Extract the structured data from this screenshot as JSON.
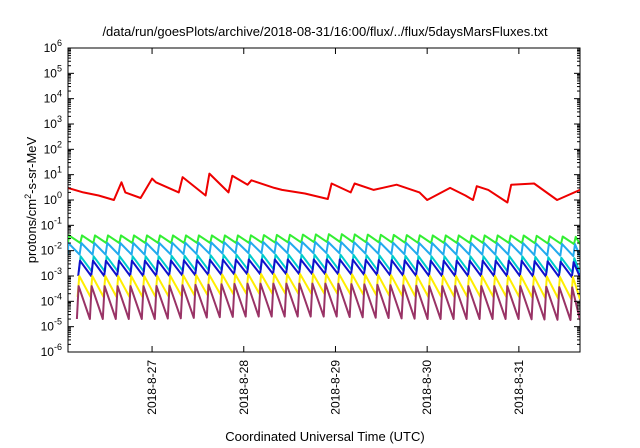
{
  "chart_data": {
    "type": "line",
    "title": "/data/run/goesPlots/archive/2018-08-31/16:00/flux/../flux/5daysMarsFluxes.txt",
    "xlabel": "Coordinated Universal Time (UTC)",
    "ylabel": {
      "pre": "protons/cm",
      "sup": "2",
      "post": "-s-sr-MeV"
    },
    "y_scale": "log",
    "ylim": [
      1e-06,
      1000000.0
    ],
    "xlim": [
      "2018-08-26 02:00",
      "2018-08-31 16:00"
    ],
    "x_ticks": [
      "2018-8-27",
      "2018-8-28",
      "2018-8-29",
      "2018-8-30",
      "2018-8-31"
    ],
    "y_ticks": [
      {
        "base": "10",
        "exp": "-6"
      },
      {
        "base": "10",
        "exp": "-5"
      },
      {
        "base": "10",
        "exp": "-4"
      },
      {
        "base": "10",
        "exp": "-3"
      },
      {
        "base": "10",
        "exp": "-2"
      },
      {
        "base": "10",
        "exp": "-1"
      },
      {
        "base": "10",
        "exp": "0"
      },
      {
        "base": "10",
        "exp": "1"
      },
      {
        "base": "10",
        "exp": "2"
      },
      {
        "base": "10",
        "exp": "3"
      },
      {
        "base": "10",
        "exp": "4"
      },
      {
        "base": "10",
        "exp": "5"
      },
      {
        "base": "10",
        "exp": "6"
      }
    ],
    "grid": false,
    "legend": "none",
    "series": [
      {
        "color": "#ee0000",
        "x": [
          "2018-08-26 02:00",
          "2018-08-26 06:00",
          "2018-08-26 10:00",
          "2018-08-26 14:00",
          "2018-08-26 16:00",
          "2018-08-26 17:00",
          "2018-08-26 21:00",
          "2018-08-27 00:00",
          "2018-08-27 01:00",
          "2018-08-27 07:00",
          "2018-08-27 08:00",
          "2018-08-27 14:00",
          "2018-08-27 15:00",
          "2018-08-27 20:00",
          "2018-08-27 21:00",
          "2018-08-28 01:00",
          "2018-08-28 02:00",
          "2018-08-28 08:00",
          "2018-08-28 10:00",
          "2018-08-28 16:00",
          "2018-08-28 22:00",
          "2018-08-28 23:00",
          "2018-08-29 04:00",
          "2018-08-29 05:00",
          "2018-08-29 10:00",
          "2018-08-29 16:00",
          "2018-08-29 22:00",
          "2018-08-30 00:00",
          "2018-08-30 06:00",
          "2018-08-30 10:00",
          "2018-08-30 12:00",
          "2018-08-30 13:00",
          "2018-08-30 16:00",
          "2018-08-30 21:00",
          "2018-08-30 22:00",
          "2018-08-31 04:00",
          "2018-08-31 10:00",
          "2018-08-31 16:00"
        ],
        "y": [
          3.0,
          2.0,
          1.5,
          1.0,
          5.0,
          2.0,
          1.2,
          7.0,
          5.0,
          2.0,
          8.0,
          1.5,
          11.0,
          2.0,
          9.0,
          4.0,
          6.0,
          3.0,
          2.5,
          1.8,
          1.1,
          4.5,
          2.0,
          4.5,
          2.5,
          4.0,
          2.0,
          1.0,
          3.0,
          1.5,
          1.0,
          3.5,
          2.5,
          0.8,
          4.0,
          4.5,
          1.0,
          2.5
        ]
      },
      {
        "color": "#33ee33",
        "x": [
          "2018-08-26 02:00",
          "2018-08-27 00:00",
          "2018-08-28 00:00",
          "2018-08-29 00:00",
          "2018-08-30 00:00",
          "2018-08-31 00:00",
          "2018-08-31 16:00"
        ],
        "y_peak": [
          0.04,
          0.04,
          0.04,
          0.045,
          0.04,
          0.04,
          0.035
        ],
        "y_trough": [
          0.02,
          0.02,
          0.02,
          0.022,
          0.02,
          0.02,
          0.018
        ]
      },
      {
        "color": "#22aaee",
        "x": [
          "2018-08-26 02:00",
          "2018-08-27 00:00",
          "2018-08-28 00:00",
          "2018-08-29 00:00",
          "2018-08-30 00:00",
          "2018-08-31 00:00",
          "2018-08-31 16:00"
        ],
        "y_peak": [
          0.02,
          0.02,
          0.022,
          0.022,
          0.02,
          0.02,
          0.018
        ],
        "y_trough": [
          0.007,
          0.007,
          0.008,
          0.008,
          0.007,
          0.007,
          0.006
        ]
      },
      {
        "color": "#00cccc",
        "x": [
          "2018-08-26 02:00",
          "2018-08-27 00:00",
          "2018-08-28 00:00",
          "2018-08-29 00:00",
          "2018-08-30 00:00",
          "2018-08-31 00:00",
          "2018-08-31 16:00"
        ],
        "y_peak": [
          0.006,
          0.006,
          0.007,
          0.007,
          0.006,
          0.006,
          0.005
        ],
        "y_trough": [
          0.0015,
          0.0015,
          0.0018,
          0.0018,
          0.0015,
          0.0015,
          0.0013
        ]
      },
      {
        "color": "#1111cc",
        "x": [
          "2018-08-26 02:00",
          "2018-08-27 00:00",
          "2018-08-28 00:00",
          "2018-08-29 00:00",
          "2018-08-30 00:00",
          "2018-08-31 00:00",
          "2018-08-31 16:00"
        ],
        "y_peak": [
          0.004,
          0.004,
          0.0045,
          0.0045,
          0.004,
          0.004,
          0.0035
        ],
        "y_trough": [
          0.001,
          0.001,
          0.0012,
          0.0012,
          0.001,
          0.001,
          0.0009
        ]
      },
      {
        "color": "#ffee00",
        "x": [
          "2018-08-26 02:00",
          "2018-08-27 00:00",
          "2018-08-28 00:00",
          "2018-08-29 00:00",
          "2018-08-30 00:00",
          "2018-08-31 00:00",
          "2018-08-31 16:00"
        ],
        "y_peak": [
          0.001,
          0.001,
          0.0012,
          0.0012,
          0.001,
          0.001,
          0.0009
        ],
        "y_trough": [
          0.00015,
          0.00015,
          0.0002,
          0.0002,
          0.00015,
          0.00015,
          0.00012
        ]
      },
      {
        "color": "#993366",
        "x": [
          "2018-08-26 02:00",
          "2018-08-27 00:00",
          "2018-08-28 00:00",
          "2018-08-29 00:00",
          "2018-08-30 00:00",
          "2018-08-31 00:00",
          "2018-08-31 16:00"
        ],
        "y_peak": [
          0.0004,
          0.0004,
          0.0005,
          0.0005,
          0.0004,
          0.0004,
          0.00035
        ],
        "y_trough": [
          2e-05,
          2e-05,
          2.5e-05,
          2.5e-05,
          2e-05,
          2e-05,
          1.8e-05
        ]
      }
    ]
  }
}
